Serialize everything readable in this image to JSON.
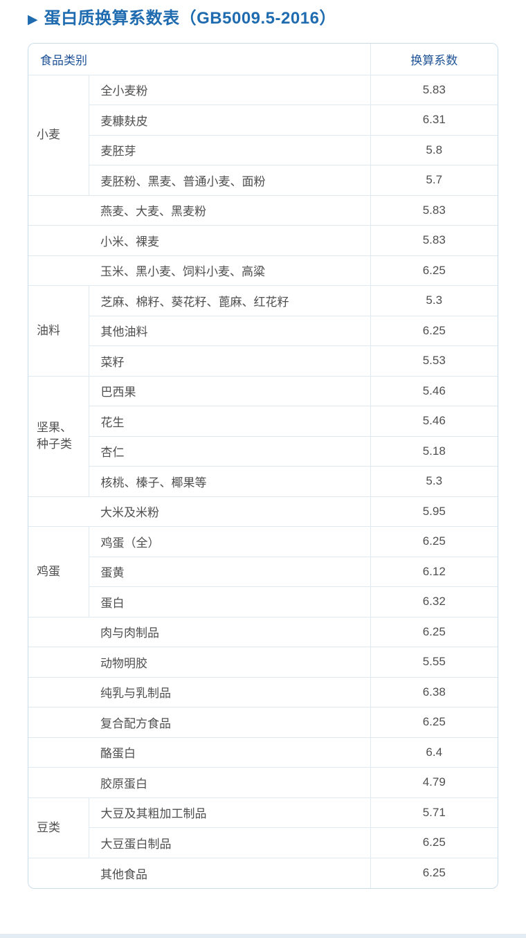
{
  "title": {
    "arrow": "▶",
    "text": "蛋白质换算系数表（GB5009.5-2016）"
  },
  "colors": {
    "accent_blue": "#1e6bb0",
    "header_text": "#1f5397",
    "body_text": "#4f4f4f",
    "inner_border": "#dfe9f2",
    "outer_border": "#c7dbe9",
    "bottom_strip": "#e3ecf2"
  },
  "table": {
    "headers": {
      "category": "食品类别",
      "coefficient": "换算系数"
    },
    "rows": [
      {
        "group": "小麦",
        "rowspan": 4,
        "item": "全小麦粉",
        "value": "5.83"
      },
      {
        "item": "麦糠麸皮",
        "value": "6.31"
      },
      {
        "item": "麦胚芽",
        "value": "5.8"
      },
      {
        "item": "麦胚粉、黑麦、普通小麦、面粉",
        "value": "5.7"
      },
      {
        "span": true,
        "item": "燕麦、大麦、黑麦粉",
        "value": "5.83"
      },
      {
        "span": true,
        "item": "小米、裸麦",
        "value": "5.83"
      },
      {
        "span": true,
        "item": "玉米、黑小麦、饲料小麦、高粱",
        "value": "6.25"
      },
      {
        "group": "油料",
        "rowspan": 3,
        "item": "芝麻、棉籽、葵花籽、蓖麻、红花籽",
        "value": "5.3"
      },
      {
        "item": "其他油料",
        "value": "6.25"
      },
      {
        "item": "菜籽",
        "value": "5.53"
      },
      {
        "group": "坚果、\n种子类",
        "rowspan": 4,
        "item": "巴西果",
        "value": "5.46"
      },
      {
        "item": "花生",
        "value": "5.46"
      },
      {
        "item": "杏仁",
        "value": "5.18"
      },
      {
        "item": "核桃、榛子、椰果等",
        "value": "5.3"
      },
      {
        "span": true,
        "item": "大米及米粉",
        "value": "5.95"
      },
      {
        "group": "鸡蛋",
        "rowspan": 3,
        "item": "鸡蛋（全）",
        "value": "6.25"
      },
      {
        "item": "蛋黄",
        "value": "6.12"
      },
      {
        "item": "蛋白",
        "value": "6.32"
      },
      {
        "span": true,
        "item": "肉与肉制品",
        "value": "6.25"
      },
      {
        "span": true,
        "item": "动物明胶",
        "value": "5.55"
      },
      {
        "span": true,
        "item": "纯乳与乳制品",
        "value": "6.38"
      },
      {
        "span": true,
        "item": "复合配方食品",
        "value": "6.25"
      },
      {
        "span": true,
        "item": "酪蛋白",
        "value": "6.4"
      },
      {
        "span": true,
        "item": "胶原蛋白",
        "value": "4.79"
      },
      {
        "group": "豆类",
        "rowspan": 2,
        "item": "大豆及其粗加工制品",
        "value": "5.71"
      },
      {
        "item": "大豆蛋白制品",
        "value": "6.25"
      },
      {
        "span": true,
        "item": "其他食品",
        "value": "6.25"
      }
    ]
  },
  "chart_data": {
    "type": "table",
    "title": "蛋白质换算系数表（GB5009.5-2016）",
    "columns": [
      "食品类别",
      "食品",
      "换算系数"
    ],
    "rows": [
      [
        "小麦",
        "全小麦粉",
        5.83
      ],
      [
        "小麦",
        "麦糠麸皮",
        6.31
      ],
      [
        "小麦",
        "麦胚芽",
        5.8
      ],
      [
        "小麦",
        "麦胚粉、黑麦、普通小麦、面粉",
        5.7
      ],
      [
        "",
        "燕麦、大麦、黑麦粉",
        5.83
      ],
      [
        "",
        "小米、裸麦",
        5.83
      ],
      [
        "",
        "玉米、黑小麦、饲料小麦、高粱",
        6.25
      ],
      [
        "油料",
        "芝麻、棉籽、葵花籽、蓖麻、红花籽",
        5.3
      ],
      [
        "油料",
        "其他油料",
        6.25
      ],
      [
        "油料",
        "菜籽",
        5.53
      ],
      [
        "坚果、种子类",
        "巴西果",
        5.46
      ],
      [
        "坚果、种子类",
        "花生",
        5.46
      ],
      [
        "坚果、种子类",
        "杏仁",
        5.18
      ],
      [
        "坚果、种子类",
        "核桃、榛子、椰果等",
        5.3
      ],
      [
        "",
        "大米及米粉",
        5.95
      ],
      [
        "鸡蛋",
        "鸡蛋（全）",
        6.25
      ],
      [
        "鸡蛋",
        "蛋黄",
        6.12
      ],
      [
        "鸡蛋",
        "蛋白",
        6.32
      ],
      [
        "",
        "肉与肉制品",
        6.25
      ],
      [
        "",
        "动物明胶",
        5.55
      ],
      [
        "",
        "纯乳与乳制品",
        6.38
      ],
      [
        "",
        "复合配方食品",
        6.25
      ],
      [
        "",
        "酪蛋白",
        6.4
      ],
      [
        "",
        "胶原蛋白",
        4.79
      ],
      [
        "豆类",
        "大豆及其粗加工制品",
        5.71
      ],
      [
        "豆类",
        "大豆蛋白制品",
        6.25
      ],
      [
        "",
        "其他食品",
        6.25
      ]
    ]
  }
}
